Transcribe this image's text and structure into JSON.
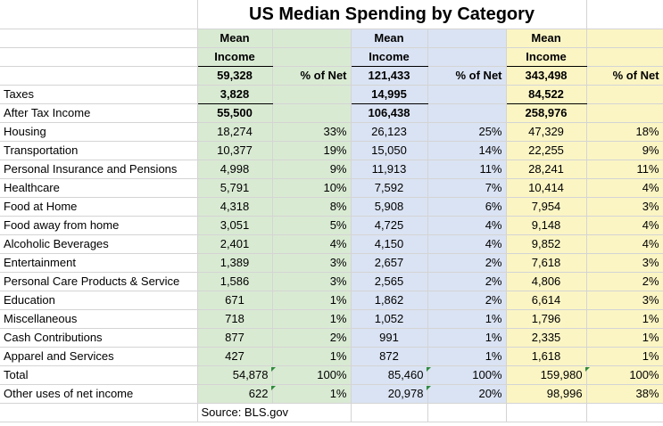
{
  "title": "US Median Spending by Category",
  "header": {
    "mean": "Mean",
    "income": "Income",
    "pct_net": "% of Net"
  },
  "groups": [
    {
      "mean_income": "59,328",
      "taxes": "3,828",
      "after_tax": "55,500"
    },
    {
      "mean_income": "121,433",
      "taxes": "14,995",
      "after_tax": "106,438"
    },
    {
      "mean_income": "343,498",
      "taxes": "84,522",
      "after_tax": "258,976"
    }
  ],
  "labels": {
    "taxes": "Taxes",
    "after_tax": "After Tax Income"
  },
  "rows": [
    {
      "label": "Housing",
      "v1": "18,274",
      "p1": "33%",
      "v2": "26,123",
      "p2": "25%",
      "v3": "47,329",
      "p3": "18%"
    },
    {
      "label": "Transportation",
      "v1": "10,377",
      "p1": "19%",
      "v2": "15,050",
      "p2": "14%",
      "v3": "22,255",
      "p3": "9%"
    },
    {
      "label": "Personal Insurance and Pensions",
      "v1": "4,998",
      "p1": "9%",
      "v2": "11,913",
      "p2": "11%",
      "v3": "28,241",
      "p3": "11%"
    },
    {
      "label": "Healthcare",
      "v1": "5,791",
      "p1": "10%",
      "v2": "7,592",
      "p2": "7%",
      "v3": "10,414",
      "p3": "4%"
    },
    {
      "label": "Food at Home",
      "v1": "4,318",
      "p1": "8%",
      "v2": "5,908",
      "p2": "6%",
      "v3": "7,954",
      "p3": "3%"
    },
    {
      "label": "Food away from home",
      "v1": "3,051",
      "p1": "5%",
      "v2": "4,725",
      "p2": "4%",
      "v3": "9,148",
      "p3": "4%"
    },
    {
      "label": "Alcoholic Beverages",
      "v1": "2,401",
      "p1": "4%",
      "v2": "4,150",
      "p2": "4%",
      "v3": "9,852",
      "p3": "4%"
    },
    {
      "label": "Entertainment",
      "v1": "1,389",
      "p1": "3%",
      "v2": "2,657",
      "p2": "2%",
      "v3": "7,618",
      "p3": "3%"
    },
    {
      "label": "Personal Care Products & Service",
      "v1": "1,586",
      "p1": "3%",
      "v2": "2,565",
      "p2": "2%",
      "v3": "4,806",
      "p3": "2%"
    },
    {
      "label": "Education",
      "v1": "671",
      "p1": "1%",
      "v2": "1,862",
      "p2": "2%",
      "v3": "6,614",
      "p3": "3%"
    },
    {
      "label": "Miscellaneous",
      "v1": "718",
      "p1": "1%",
      "v2": "1,052",
      "p2": "1%",
      "v3": "1,796",
      "p3": "1%"
    },
    {
      "label": "Cash Contributions",
      "v1": "877",
      "p1": "2%",
      "v2": "991",
      "p2": "1%",
      "v3": "2,335",
      "p3": "1%"
    },
    {
      "label": "Apparel and Services",
      "v1": "427",
      "p1": "1%",
      "v2": "872",
      "p2": "1%",
      "v3": "1,618",
      "p3": "1%"
    }
  ],
  "total": {
    "label": "Total",
    "v1": "54,878",
    "p1": "100%",
    "v2": "85,460",
    "p2": "100%",
    "v3": "159,980",
    "p3": "100%"
  },
  "other": {
    "label": "Other uses of net income",
    "v1": "622",
    "p1": "1%",
    "v2": "20,978",
    "p2": "20%",
    "v3": "98,996",
    "p3": "38%"
  },
  "source": "Source: BLS.gov",
  "colors": {
    "group1": "#d9ead3",
    "group2": "#dae3f3",
    "group3": "#fbf5c4",
    "gridline": "#d4d4d4",
    "error_marker": "#2e8b3e"
  }
}
